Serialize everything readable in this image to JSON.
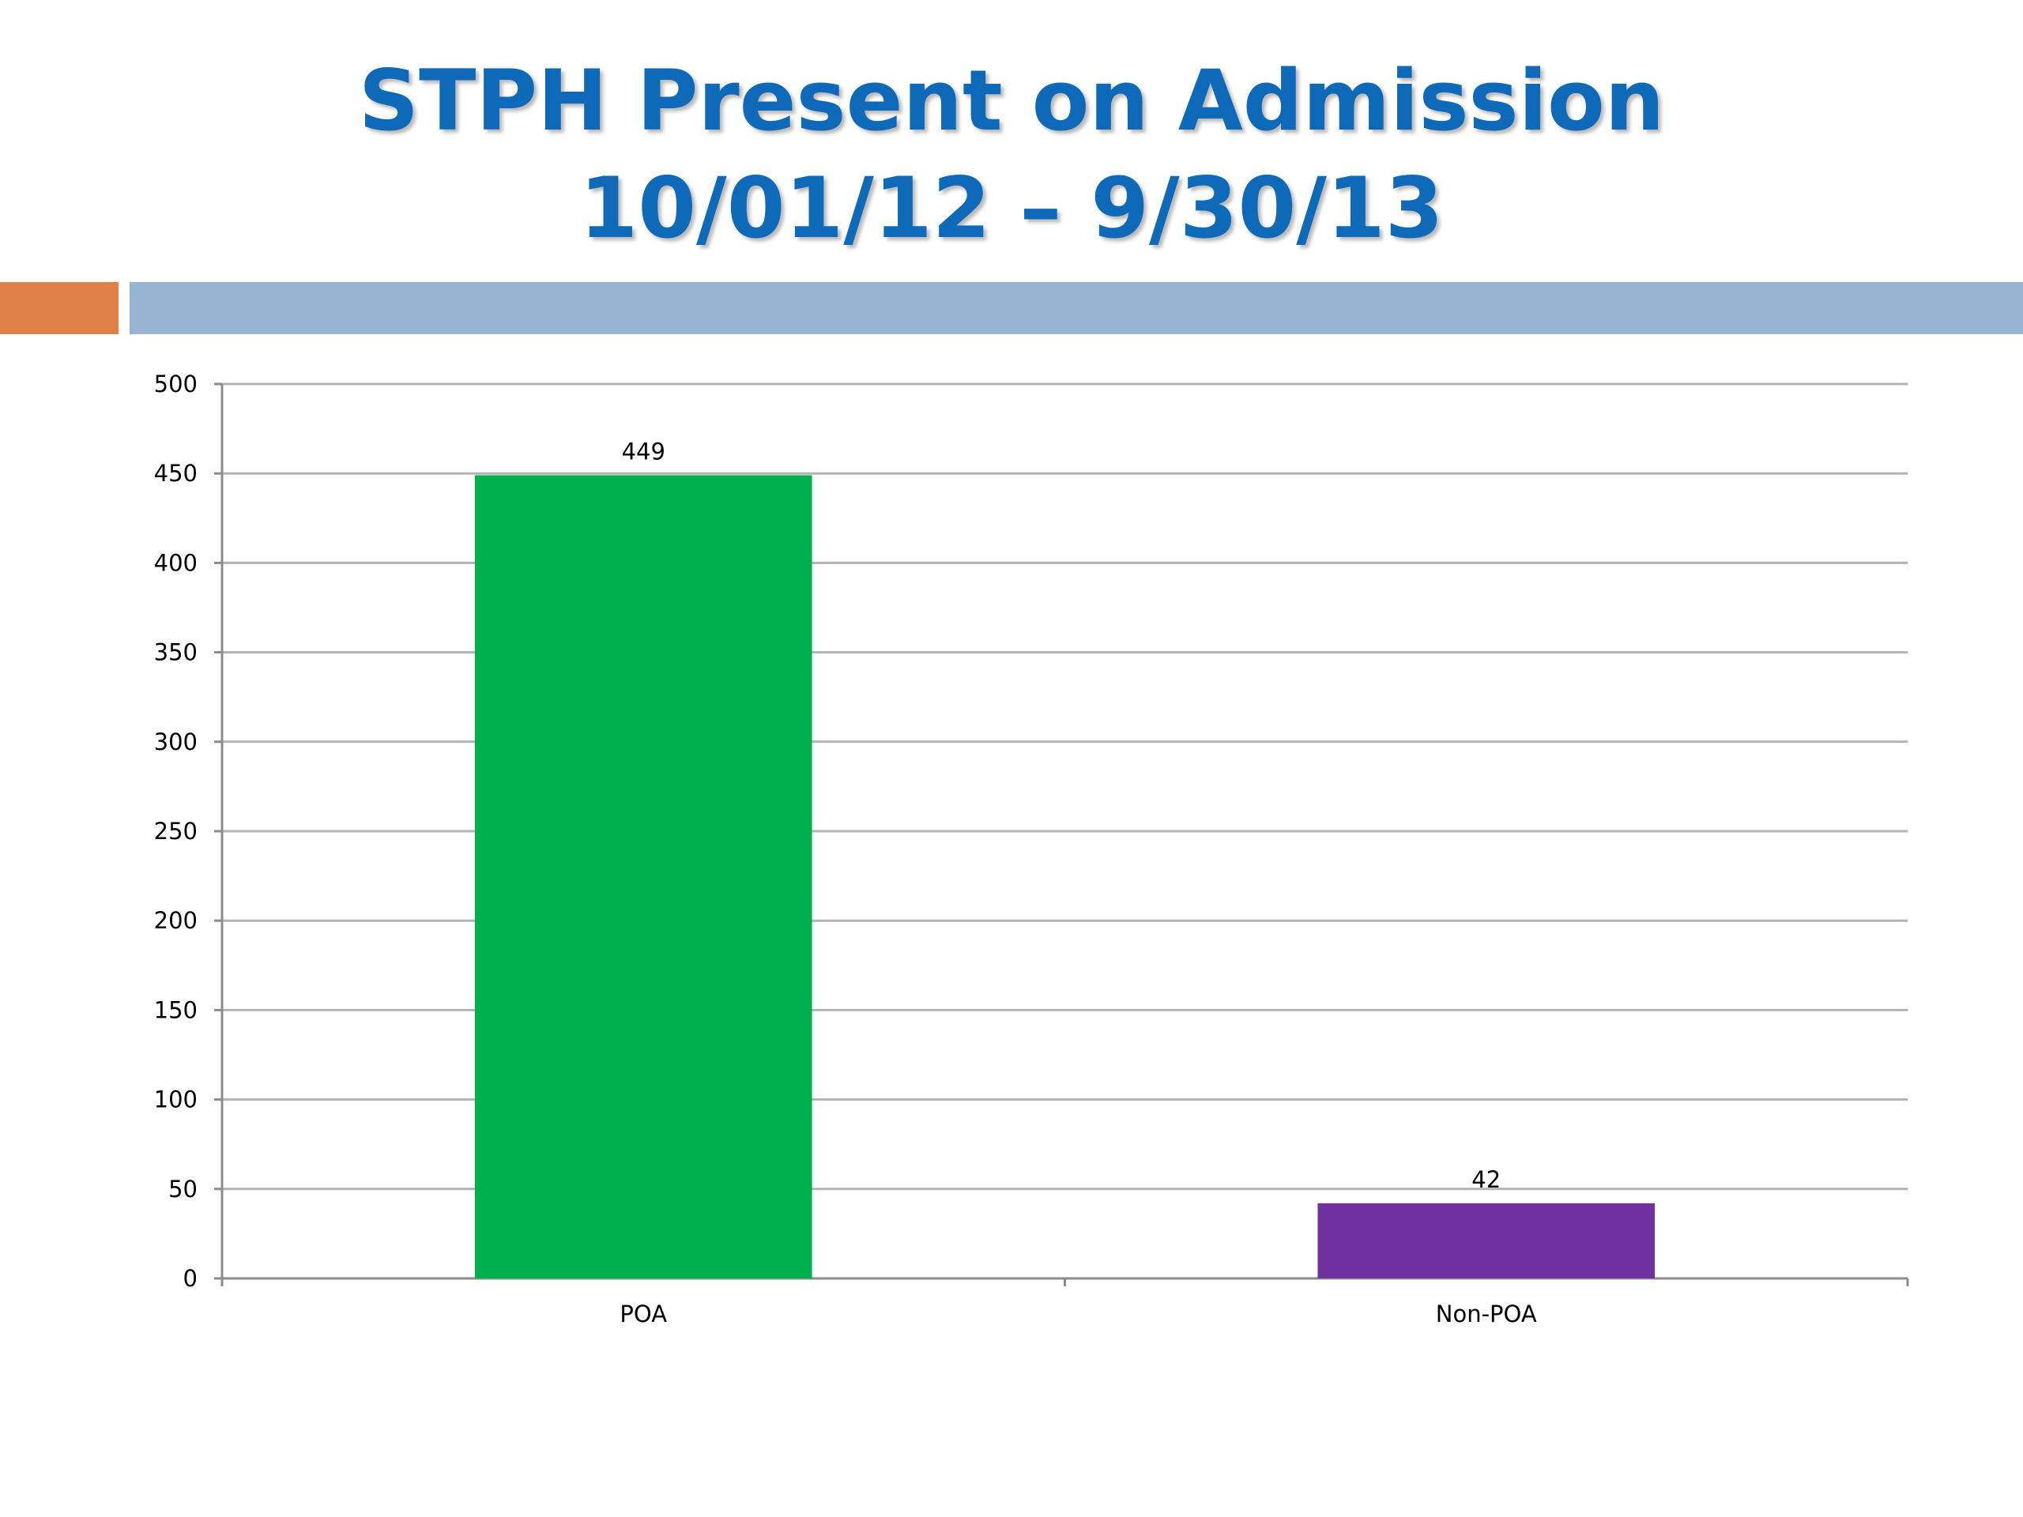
{
  "slide": {
    "title_line1": "STPH Present on Admission",
    "title_line2": "10/01/12 – 9/30/13"
  },
  "colors": {
    "title": "#0e6ab8",
    "accent_orange": "#e0814a",
    "accent_blue": "#97b5d3",
    "gridline": "#b3b3b3",
    "axis": "#8c8c8c",
    "text": "#000000"
  },
  "chart_data": {
    "type": "bar",
    "categories": [
      "POA",
      "Non-POA"
    ],
    "values": [
      449,
      42
    ],
    "bar_colors": [
      "#00ae4d",
      "#7030a0"
    ],
    "data_labels": [
      "449",
      "42"
    ],
    "ylim": [
      0,
      500
    ],
    "yticks": [
      0,
      50,
      100,
      150,
      200,
      250,
      300,
      350,
      400,
      450,
      500
    ],
    "grid": true,
    "legend": "none",
    "xlabel": "",
    "ylabel": ""
  }
}
